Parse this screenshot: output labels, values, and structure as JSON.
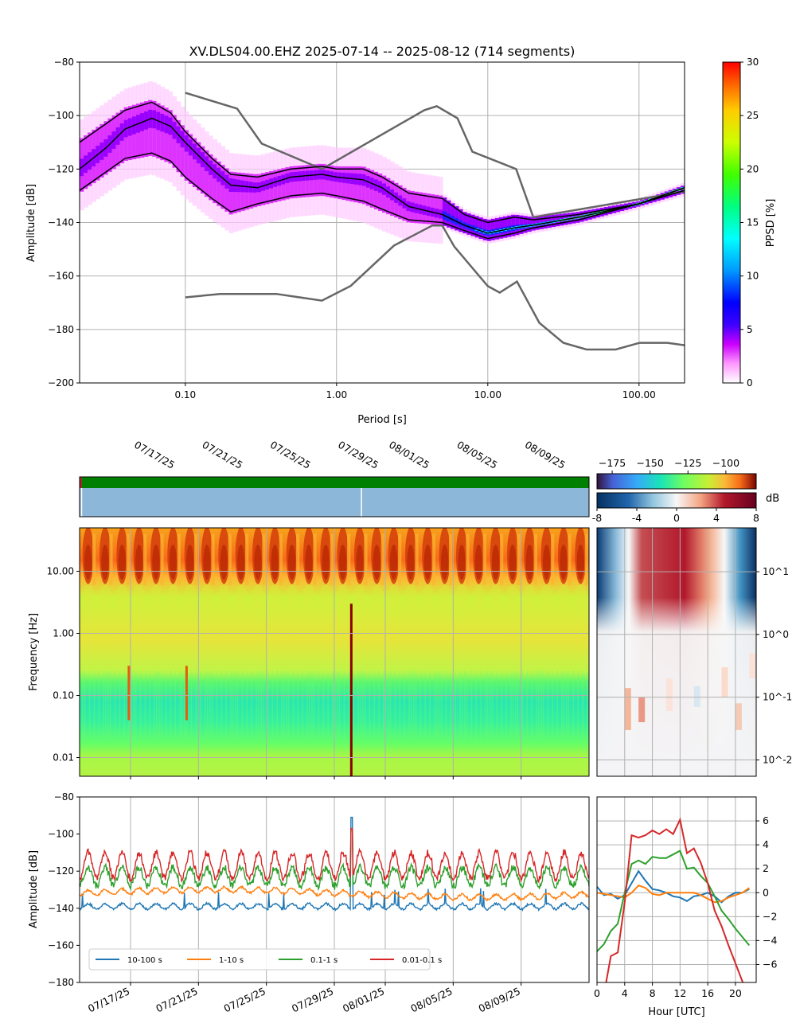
{
  "figure": {
    "title": "XV.DLS04.00.EHZ   2025-07-14 -- 2025-08-12  (714 segments)"
  },
  "colors": {
    "ppsd_high": "#ff0000",
    "ppsd_mid": "#00ff80",
    "ppsd_low": "#8000ff",
    "noise_model": "#666666",
    "percentile": "#000000",
    "band_10_100": "#1f77b4",
    "band_1_10": "#ff7f0e",
    "band_01_1": "#2ca02c",
    "band_001_01": "#d62728",
    "data_availability": "#008000",
    "gaps_bar": "#8cb7d8"
  },
  "chart_data": [
    {
      "id": "ppsd",
      "type": "heatmap",
      "title": "XV.DLS04.00.EHZ   2025-07-14 -- 2025-08-12  (714 segments)",
      "xlabel": "Period [s]",
      "ylabel": "Amplitude [dB]",
      "xscale": "log",
      "xlim": [
        0.02,
        200
      ],
      "ylim": [
        -200,
        -80
      ],
      "xticks": [
        "0.10",
        "1.00",
        "10.00",
        "100.00"
      ],
      "xtick_values": [
        0.1,
        1,
        10,
        100
      ],
      "yticks": [
        -200,
        -180,
        -160,
        -140,
        -120,
        -100,
        -80
      ],
      "grid": true,
      "colorbar": {
        "label": "PPSD [%]",
        "range": [
          0,
          30
        ],
        "ticks": [
          0,
          5,
          10,
          15,
          20,
          25,
          30
        ]
      },
      "percentiles": [
        {
          "periods": [
            0.02,
            0.03,
            0.04,
            0.06,
            0.08,
            0.1,
            0.15,
            0.2,
            0.3,
            0.5,
            0.8,
            1.0,
            1.5,
            2.0,
            3.0,
            5.0,
            7.0,
            10.0,
            15.0,
            20.0,
            40.0,
            100.0,
            200.0
          ],
          "upper": [
            -110,
            -103,
            -98,
            -95,
            -99,
            -106,
            -116,
            -122,
            -123,
            -120,
            -119,
            -120,
            -120,
            -123,
            -129,
            -131,
            -137,
            -140,
            -138,
            -139,
            -137,
            -133,
            -127
          ],
          "median": [
            -120,
            -112,
            -105,
            -101,
            -104,
            -110,
            -120,
            -126,
            -127,
            -123,
            -122,
            -123,
            -124,
            -127,
            -134,
            -137,
            -141,
            -144,
            -142,
            -141,
            -138,
            -133,
            -127
          ],
          "lower": [
            -128,
            -121,
            -116,
            -114,
            -117,
            -123,
            -131,
            -136,
            -133,
            -130,
            -129,
            -130,
            -132,
            -135,
            -139,
            -140,
            -143,
            -146,
            -144,
            -142,
            -139,
            -133,
            -128
          ]
        }
      ],
      "noise_models": {
        "nhnm": {
          "periods": [
            0.1,
            0.22,
            0.32,
            0.8,
            3.8,
            4.6,
            6.3,
            7.9,
            15.4,
            20.0,
            354.8,
            10000
          ],
          "values": [
            -91.5,
            -97.4,
            -110.5,
            -120.0,
            -98.0,
            -96.5,
            -101.0,
            -113.5,
            -120.0,
            -138.0,
            -126.0,
            -80
          ]
        },
        "nlnm": {
          "periods": [
            0.1,
            0.17,
            0.4,
            0.8,
            1.24,
            2.4,
            4.3,
            5.0,
            6.0,
            10.0,
            12.0,
            15.6,
            21.9,
            31.6,
            45.0,
            70.0,
            101.0,
            154.0,
            200.0
          ],
          "values": [
            -168.0,
            -166.7,
            -166.7,
            -169.2,
            -163.7,
            -148.6,
            -141.1,
            -141.1,
            -149.0,
            -163.8,
            -166.2,
            -162.1,
            -177.5,
            -185.0,
            -187.5,
            -187.5,
            -185.0,
            -185.0,
            -185.9
          ]
        }
      }
    },
    {
      "id": "spectrogram",
      "type": "heatmap",
      "ylabel": "Frequency [Hz]",
      "yscale": "log",
      "ylim": [
        0.005,
        50
      ],
      "yticks": [
        "0.01",
        "0.10",
        "1.00",
        "10.00"
      ],
      "x_dates": [
        "07/17/25",
        "07/21/25",
        "07/25/25",
        "07/29/25",
        "08/01/25",
        "08/05/25",
        "08/09/25"
      ],
      "x_date_offsets_days": [
        3,
        7,
        11,
        15,
        18,
        22,
        26
      ],
      "x_days_total": 30,
      "colorbar": {
        "unit": "dB",
        "range": [
          -185,
          -80
        ],
        "ticks": [
          -175,
          -150,
          -125,
          -100
        ]
      },
      "event_days": [
        2.9,
        6.3,
        16.0
      ],
      "gaps": [
        16.4
      ]
    },
    {
      "id": "diurnal-spectrogram",
      "type": "heatmap",
      "xlabel": "Hour [UTC]",
      "yscale": "log",
      "yticks": [
        "10^-2",
        "10^-1",
        "10^0",
        "10^1"
      ],
      "colorbar": {
        "unit": "dB",
        "range": [
          -8,
          8
        ],
        "ticks": [
          "-8",
          "-4",
          "0",
          "4",
          "8"
        ]
      }
    },
    {
      "id": "band-timeseries",
      "type": "line",
      "ylabel": "Amplitude [dB]",
      "ylim": [
        -180,
        -80
      ],
      "yticks": [
        -180,
        -160,
        -140,
        -120,
        -100,
        -80
      ],
      "x_dates": [
        "07/17/25",
        "07/21/25",
        "07/25/25",
        "07/29/25",
        "08/01/25",
        "08/05/25",
        "08/09/25"
      ],
      "x_date_offsets_days": [
        3,
        7,
        11,
        15,
        18,
        22,
        26
      ],
      "x_days_total": 30,
      "legend": "bottom-left",
      "series": [
        {
          "name": "10-100 s",
          "base": -139,
          "daily_amp": 1.5,
          "color": "#1f77b4"
        },
        {
          "name": "1-10 s",
          "base": -132,
          "daily_amp": 1.5,
          "color": "#ff7f0e"
        },
        {
          "name": "0.1-1 s",
          "base": -123,
          "daily_amp": 5,
          "color": "#2ca02c"
        },
        {
          "name": "0.01-0.1 s",
          "base": -117,
          "daily_amp": 7,
          "color": "#d62728"
        }
      ]
    },
    {
      "id": "band-diurnal",
      "type": "line",
      "xlabel": "Hour [UTC]",
      "xlim": [
        0,
        23
      ],
      "xticks": [
        0,
        4,
        8,
        12,
        16,
        20
      ],
      "ylim": [
        -7.5,
        8
      ],
      "yticks": [
        -6,
        -4,
        -2,
        0,
        2,
        4,
        6
      ],
      "x": [
        0,
        1,
        2,
        3,
        4,
        5,
        6,
        7,
        8,
        9,
        10,
        11,
        12,
        13,
        14,
        15,
        16,
        17,
        18,
        19,
        20,
        21,
        22
      ],
      "series": [
        {
          "name": "10-100 s",
          "values": [
            0.5,
            -0.2,
            -0.1,
            -0.5,
            -0.2,
            0.8,
            1.8,
            1.0,
            0.3,
            0.2,
            0.0,
            -0.3,
            -0.4,
            -0.7,
            -0.3,
            -0.2,
            0.0,
            -0.3,
            -0.8,
            -0.3,
            0.0,
            0.0,
            0.3
          ]
        },
        {
          "name": "1-10 s",
          "values": [
            0.0,
            -0.1,
            -0.2,
            -0.3,
            -0.4,
            0.0,
            0.6,
            0.4,
            -0.1,
            -0.2,
            0.0,
            0.0,
            0.0,
            0.0,
            0.0,
            -0.2,
            -0.5,
            -0.8,
            -0.7,
            -0.4,
            -0.2,
            0.0,
            0.4
          ]
        },
        {
          "name": "0.1-1 s",
          "values": [
            -4.9,
            -4.3,
            -3.2,
            -2.6,
            0.0,
            2.4,
            2.7,
            2.4,
            3.0,
            2.9,
            2.9,
            3.2,
            3.5,
            2.0,
            2.1,
            1.4,
            0.8,
            -0.3,
            -1.5,
            -2.2,
            -3.0,
            -3.7,
            -4.4
          ]
        },
        {
          "name": "0.01-0.1 s",
          "values": [
            -10.0,
            -8.5,
            -5.3,
            -5.0,
            -0.8,
            4.8,
            4.6,
            4.8,
            5.2,
            4.9,
            5.3,
            4.9,
            6.1,
            3.3,
            3.7,
            2.5,
            0.8,
            -1.5,
            -2.8,
            -4.4,
            -5.9,
            -7.4,
            -9.0
          ]
        }
      ]
    },
    {
      "id": "availability",
      "type": "bar",
      "colors": [
        "#008000",
        "#8cb7d8"
      ]
    }
  ]
}
